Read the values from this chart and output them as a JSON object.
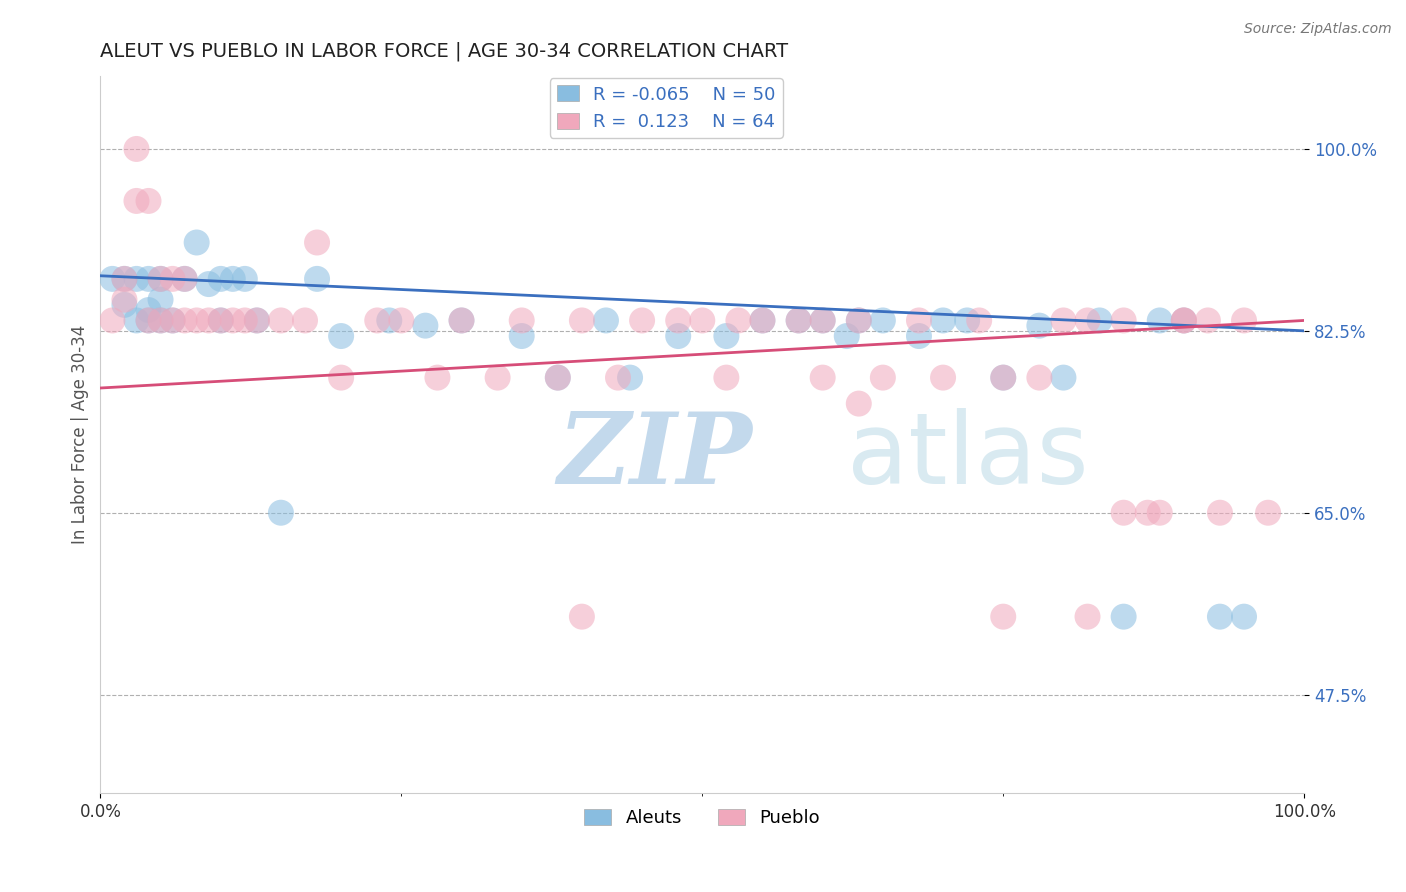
{
  "title": "ALEUT VS PUEBLO IN LABOR FORCE | AGE 30-34 CORRELATION CHART",
  "source_text": "Source: ZipAtlas.com",
  "ylabel": "In Labor Force | Age 30-34",
  "xlim": [
    0.0,
    1.0
  ],
  "ylim": [
    0.38,
    1.07
  ],
  "yticks": [
    0.475,
    0.65,
    0.825,
    1.0
  ],
  "ytick_labels": [
    "47.5%",
    "65.0%",
    "82.5%",
    "100.0%"
  ],
  "xticks": [
    0.0,
    1.0
  ],
  "xtick_labels": [
    "0.0%",
    "100.0%"
  ],
  "blue_R": -0.065,
  "blue_N": 50,
  "pink_R": 0.123,
  "pink_N": 64,
  "blue_color": "#89bde0",
  "pink_color": "#f0a8bc",
  "blue_line_color": "#3a6fbf",
  "pink_line_color": "#d64d78",
  "watermark_zip": "ZIP",
  "watermark_atlas": "atlas",
  "watermark_color_zip": "#bdd5ea",
  "watermark_color_atlas": "#d5e8f0",
  "legend_label_blue": "Aleuts",
  "legend_label_pink": "Pueblo",
  "blue_scatter_x": [
    0.01,
    0.02,
    0.02,
    0.03,
    0.03,
    0.04,
    0.04,
    0.04,
    0.05,
    0.05,
    0.05,
    0.06,
    0.07,
    0.08,
    0.09,
    0.1,
    0.1,
    0.11,
    0.12,
    0.13,
    0.15,
    0.18,
    0.2,
    0.24,
    0.27,
    0.3,
    0.35,
    0.38,
    0.42,
    0.44,
    0.48,
    0.52,
    0.55,
    0.58,
    0.6,
    0.62,
    0.63,
    0.65,
    0.68,
    0.7,
    0.72,
    0.75,
    0.78,
    0.8,
    0.83,
    0.85,
    0.88,
    0.9,
    0.93,
    0.95
  ],
  "blue_scatter_y": [
    0.875,
    0.875,
    0.85,
    0.875,
    0.835,
    0.875,
    0.845,
    0.835,
    0.875,
    0.855,
    0.835,
    0.835,
    0.875,
    0.91,
    0.87,
    0.875,
    0.835,
    0.875,
    0.875,
    0.835,
    0.65,
    0.875,
    0.82,
    0.835,
    0.83,
    0.835,
    0.82,
    0.78,
    0.835,
    0.78,
    0.82,
    0.82,
    0.835,
    0.835,
    0.835,
    0.82,
    0.835,
    0.835,
    0.82,
    0.835,
    0.835,
    0.78,
    0.83,
    0.78,
    0.835,
    0.55,
    0.835,
    0.835,
    0.55,
    0.55
  ],
  "pink_scatter_x": [
    0.01,
    0.02,
    0.02,
    0.03,
    0.03,
    0.04,
    0.04,
    0.05,
    0.05,
    0.06,
    0.06,
    0.07,
    0.08,
    0.09,
    0.1,
    0.11,
    0.12,
    0.13,
    0.15,
    0.17,
    0.2,
    0.23,
    0.25,
    0.28,
    0.3,
    0.33,
    0.35,
    0.38,
    0.4,
    0.43,
    0.45,
    0.48,
    0.5,
    0.53,
    0.55,
    0.58,
    0.6,
    0.63,
    0.65,
    0.68,
    0.7,
    0.73,
    0.75,
    0.78,
    0.8,
    0.82,
    0.85,
    0.87,
    0.9,
    0.92,
    0.95,
    0.97,
    0.07,
    0.18,
    0.4,
    0.52,
    0.6,
    0.63,
    0.75,
    0.82,
    0.85,
    0.88,
    0.9,
    0.93
  ],
  "pink_scatter_y": [
    0.835,
    0.875,
    0.855,
    1.0,
    0.95,
    0.835,
    0.95,
    0.875,
    0.835,
    0.875,
    0.835,
    0.835,
    0.835,
    0.835,
    0.835,
    0.835,
    0.835,
    0.835,
    0.835,
    0.835,
    0.78,
    0.835,
    0.835,
    0.78,
    0.835,
    0.78,
    0.835,
    0.78,
    0.835,
    0.78,
    0.835,
    0.835,
    0.835,
    0.835,
    0.835,
    0.835,
    0.835,
    0.835,
    0.78,
    0.835,
    0.78,
    0.835,
    0.78,
    0.78,
    0.835,
    0.835,
    0.835,
    0.65,
    0.835,
    0.835,
    0.835,
    0.65,
    0.875,
    0.91,
    0.55,
    0.78,
    0.78,
    0.755,
    0.55,
    0.55,
    0.65,
    0.65,
    0.835,
    0.65
  ]
}
